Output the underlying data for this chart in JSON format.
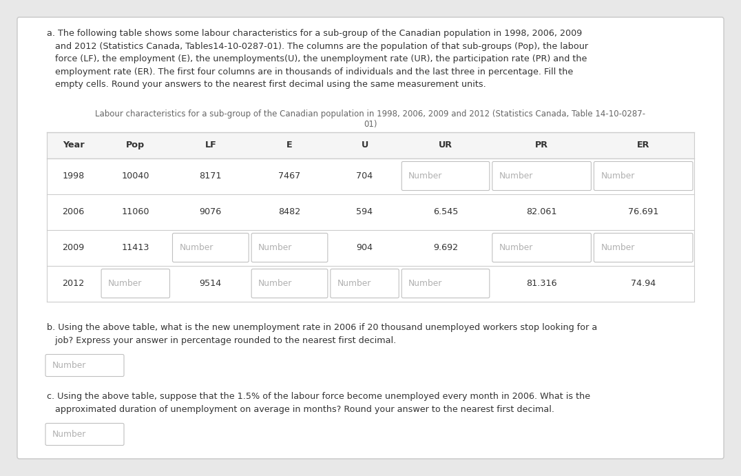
{
  "bg_color": "#e8e8e8",
  "card_color": "#ffffff",
  "text_color": "#333333",
  "caption_color": "#666666",
  "border_color": "#cccccc",
  "input_border_color": "#c0c0c0",
  "input_text_color": "#b0b0b0",
  "header_bg": "#f5f5f5",
  "font_size_para": 9.2,
  "font_size_caption": 8.5,
  "font_size_table": 9.2,
  "font_size_input": 8.8,
  "title_a_lines": [
    "a. The following table shows some labour characteristics for a sub-group of the Canadian population in 1998, 2006, 2009",
    "   and 2012 (Statistics Canada, Tables14-10-0287-01). The columns are the population of that sub-groups (Pop), the labour",
    "   force (LF), the employment (E), the unemployments(U), the unemployment rate (UR), the participation rate (PR) and the",
    "   employment rate (ER). The first four columns are in thousands of individuals and the last three in percentage. Fill the",
    "   empty cells. Round your answers to the nearest first decimal using the same measurement units."
  ],
  "table_caption_line1": "Labour characteristics for a sub-group of the Canadian population in 1998, 2006, 2009 and 2012 (Statistics Canada, Table 14-10-0287-",
  "table_caption_line2": "01)",
  "headers": [
    "Year",
    "Pop",
    "LF",
    "E",
    "U",
    "UR",
    "PR",
    "ER"
  ],
  "rows": [
    [
      "1998",
      "10040",
      "8171",
      "7467",
      "704",
      "Number",
      "Number",
      "Number"
    ],
    [
      "2006",
      "11060",
      "9076",
      "8482",
      "594",
      "6.545",
      "82.061",
      "76.691"
    ],
    [
      "2009",
      "11413",
      "Number",
      "Number",
      "904",
      "9.692",
      "Number",
      "Number"
    ],
    [
      "2012",
      "Number",
      "9514",
      "Number",
      "Number",
      "Number",
      "81.316",
      "74.94"
    ]
  ],
  "input_cells": [
    [
      5,
      6,
      7
    ],
    [],
    [
      2,
      3,
      6,
      7
    ],
    [
      1,
      3,
      4,
      5
    ]
  ],
  "title_b_lines": [
    "b. Using the above table, what is the new unemployment rate in 2006 if 20 thousand unemployed workers stop looking for a",
    "   job? Express your answer in percentage rounded to the nearest first decimal."
  ],
  "title_c_lines": [
    "c. Using the above table, suppose that the 1.5% of the labour force become unemployed every month in 2006. What is the",
    "   approximated duration of unemployment on average in months? Round your answer to the nearest first decimal."
  ],
  "number_placeholder": "Number"
}
